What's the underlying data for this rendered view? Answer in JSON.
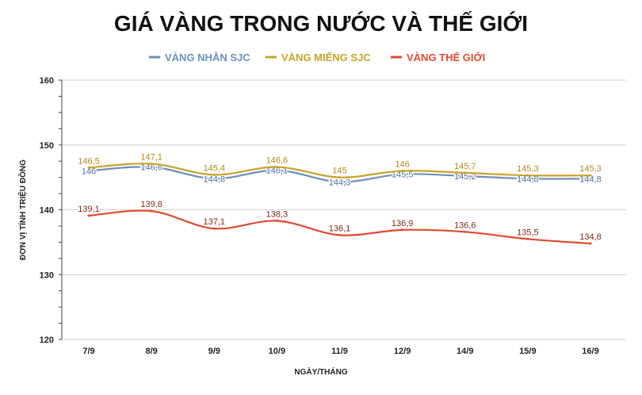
{
  "chart_data": {
    "type": "line",
    "title": "GIÁ VÀNG TRONG NƯỚC VÀ THẾ GIỚI",
    "xlabel": "NGÀY/THÁNG",
    "ylabel": "ĐƠN VỊ TÍNH TRIỆU ĐỒNG",
    "categories": [
      "7/9",
      "8/9",
      "9/9",
      "10/9",
      "11/9",
      "12/9",
      "14/9",
      "15/9",
      "16/9"
    ],
    "ylim": [
      120,
      160
    ],
    "yticks": [
      120,
      130,
      140,
      150,
      160
    ],
    "grid": true,
    "legend_position": "top-center",
    "series": [
      {
        "name": "VÀNG NHẪN SJC",
        "color": "#6b8fbf",
        "values": [
          146.0,
          146.6,
          144.8,
          146.1,
          144.3,
          145.5,
          145.2,
          144.8,
          144.8
        ],
        "labels": [
          "146",
          "146,6",
          "144,8",
          "146,1",
          "144,3",
          "145,5",
          "145,2",
          "144,8",
          "144,8"
        ]
      },
      {
        "name": "VÀNG MIẾNG SJC",
        "color": "#c9a227",
        "values": [
          146.5,
          147.1,
          145.4,
          146.6,
          145.0,
          146.0,
          145.7,
          145.3,
          145.3
        ],
        "labels": [
          "146,5",
          "147,1",
          "145,4",
          "146,6",
          "145",
          "146",
          "145,7",
          "145,3",
          "145,3"
        ]
      },
      {
        "name": "VÀNG THẾ GIỚI",
        "color": "#e04a2f",
        "values": [
          139.1,
          139.8,
          137.1,
          138.3,
          136.1,
          136.9,
          136.6,
          135.5,
          134.8
        ],
        "labels": [
          "139,1",
          "139,8",
          "137,1",
          "138,3",
          "136,1",
          "136,9",
          "136,6",
          "135,5",
          "134,8"
        ]
      }
    ]
  }
}
